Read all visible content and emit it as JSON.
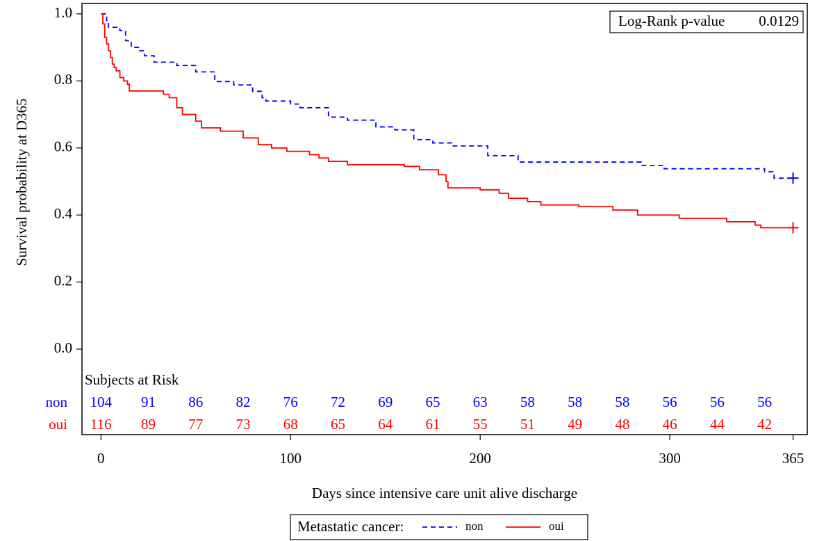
{
  "chart_data": {
    "type": "step",
    "ylabel": "Survival probability at D365",
    "xlabel": "Days since intensive care unit alive discharge",
    "annotation": {
      "label": "Log-Rank p-value",
      "value": "0.0129"
    },
    "legend_title": "Metastatic cancer:",
    "xlim": [
      -10,
      372.5
    ],
    "xticks": [
      0,
      100,
      200,
      300,
      365
    ],
    "ylim": [
      -0.255,
      1.031
    ],
    "yticks": [
      {
        "value": 0,
        "label": "0.0"
      },
      0.2,
      0.4,
      0.6,
      0.8,
      {
        "value": 1,
        "label": "1.0"
      }
    ],
    "series": [
      {
        "name": "non",
        "color": "#0000ff",
        "dash": true,
        "x": [
          0,
          3,
          4,
          10,
          13,
          16,
          20,
          23,
          28,
          40,
          50,
          60,
          70,
          80,
          85,
          87,
          100,
          105,
          120,
          130,
          145,
          155,
          165,
          175,
          185,
          204,
          220,
          285,
          297,
          350,
          355,
          365
        ],
        "values": [
          1.0,
          0.98,
          0.96,
          0.95,
          0.92,
          0.9,
          0.89,
          0.875,
          0.856,
          0.846,
          0.827,
          0.798,
          0.788,
          0.769,
          0.75,
          0.74,
          0.731,
          0.72,
          0.692,
          0.683,
          0.663,
          0.654,
          0.625,
          0.615,
          0.606,
          0.577,
          0.558,
          0.548,
          0.538,
          0.529,
          0.51,
          0.51
        ]
      },
      {
        "name": "oui",
        "color": "#ff0000",
        "dash": false,
        "x": [
          0,
          1,
          2,
          3,
          4,
          5,
          6,
          7,
          8,
          10,
          12,
          14,
          15,
          33,
          36,
          40,
          43,
          50,
          53,
          63,
          75,
          83,
          90,
          98,
          110,
          115,
          120,
          130,
          160,
          168,
          178,
          182,
          183,
          200,
          210,
          215,
          225,
          232,
          252,
          270,
          283,
          305,
          330,
          345,
          348,
          365
        ],
        "values": [
          1.0,
          0.97,
          0.93,
          0.91,
          0.89,
          0.87,
          0.85,
          0.84,
          0.83,
          0.81,
          0.8,
          0.79,
          0.77,
          0.76,
          0.75,
          0.72,
          0.7,
          0.68,
          0.66,
          0.65,
          0.63,
          0.61,
          0.6,
          0.59,
          0.58,
          0.57,
          0.56,
          0.55,
          0.545,
          0.535,
          0.52,
          0.5,
          0.481,
          0.475,
          0.465,
          0.45,
          0.44,
          0.43,
          0.425,
          0.415,
          0.4,
          0.39,
          0.38,
          0.37,
          0.362,
          0.362
        ]
      }
    ],
    "risk_table": {
      "title": "Subjects at Risk",
      "times": [
        0,
        25,
        50,
        75,
        100,
        125,
        150,
        175,
        200,
        225,
        250,
        275,
        300,
        325,
        350
      ],
      "rows": [
        [
          104,
          91,
          86,
          82,
          76,
          72,
          69,
          65,
          63,
          58,
          58,
          58,
          56,
          56,
          56
        ],
        [
          116,
          89,
          77,
          73,
          68,
          65,
          64,
          61,
          55,
          51,
          49,
          48,
          46,
          44,
          42
        ]
      ]
    }
  }
}
